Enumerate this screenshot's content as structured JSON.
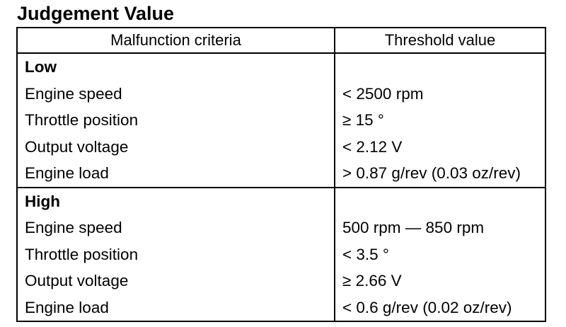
{
  "title": "Judgement Value",
  "table": {
    "headers": [
      "Malfunction criteria",
      "Threshold value"
    ],
    "groups": [
      {
        "label": "Low",
        "rows": [
          {
            "criteria": "Engine speed",
            "threshold": "< 2500 rpm"
          },
          {
            "criteria": "Throttle position",
            "threshold": "≥ 15 °"
          },
          {
            "criteria": "Output voltage",
            "threshold": "< 2.12 V"
          },
          {
            "criteria": "Engine load",
            "threshold": "> 0.87 g/rev (0.03 oz/rev)"
          }
        ]
      },
      {
        "label": "High",
        "rows": [
          {
            "criteria": "Engine speed",
            "threshold": "500 rpm — 850 rpm"
          },
          {
            "criteria": "Throttle position",
            "threshold": "< 3.5 °"
          },
          {
            "criteria": "Output voltage",
            "threshold": "≥ 2.66 V"
          },
          {
            "criteria": "Engine load",
            "threshold": "< 0.6 g/rev (0.02 oz/rev)"
          }
        ]
      }
    ]
  }
}
